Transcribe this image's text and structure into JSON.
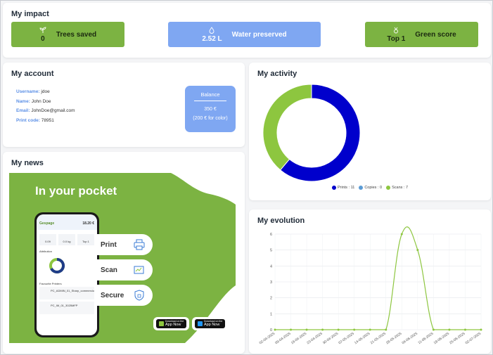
{
  "impact": {
    "title": "My impact",
    "trees": {
      "label": "Trees saved",
      "value": "0"
    },
    "water": {
      "label": "Water preserved",
      "value": "2.52 L"
    },
    "green": {
      "label": "Green score",
      "value": "Top 1"
    }
  },
  "account": {
    "title": "My account",
    "rows": [
      {
        "key": "Username:",
        "value": "jdoe"
      },
      {
        "key": "Name:",
        "value": "John Doe"
      },
      {
        "key": "Email:",
        "value": "JohnDoe@gmail.com"
      },
      {
        "key": "Print code:",
        "value": "78951"
      }
    ],
    "balance": {
      "title": "Balance",
      "amount": "350 €",
      "color_note": "(200 € for color)"
    }
  },
  "news": {
    "title": "My news",
    "banner": {
      "headline": "In your pocket",
      "features": [
        "Print",
        "Scan",
        "Secure"
      ],
      "phone_brand": "Gespage",
      "phone_balance": "18.20 €",
      "phone_stats": [
        "0.09",
        "0.0 kg",
        "Top 1"
      ],
      "phone_section": "Attribution",
      "phone_printers": "Favourite Printers",
      "phone_printer_names": [
        "PC_ADMIN_01_Sharp_commercio",
        "PC_IM_01_3025MFP"
      ],
      "store_badges": [
        {
          "small": "Download on the",
          "label": "App Now"
        },
        {
          "small": "Download on the",
          "label": "App Now"
        }
      ]
    }
  },
  "activity": {
    "title": "My activity",
    "legend": [
      {
        "name": "Prints",
        "value": "11",
        "color": "#0000cc"
      },
      {
        "name": "Copies",
        "value": "0",
        "color": "#5b9bd5"
      },
      {
        "name": "Scans",
        "value": "7",
        "color": "#8dc63f"
      }
    ]
  },
  "evolution": {
    "title": "My evolution"
  },
  "chart_data": [
    {
      "type": "pie",
      "title": "",
      "labels": [
        "Prints",
        "Copies",
        "Scans"
      ],
      "values": [
        11,
        0,
        7
      ],
      "colors": [
        "#0000cc",
        "#5b9bd5",
        "#8dc63f"
      ],
      "donut": true,
      "legend": "bottom"
    },
    {
      "type": "line",
      "title": "",
      "x": [
        "02-04-2025",
        "09-04-2025",
        "16-04-2025",
        "23-04-2025",
        "30-04-2025",
        "07-05-2025",
        "14-05-2025",
        "21-05-2025",
        "28-05-2025",
        "04-06-2025",
        "11-06-2025",
        "18-06-2025",
        "25-06-2025",
        "02-07-2025"
      ],
      "series": [
        {
          "values": [
            0,
            0,
            0,
            0,
            0,
            0,
            0,
            0,
            6,
            5,
            0,
            0,
            0,
            0
          ],
          "color": "#8dc63f"
        }
      ],
      "ylim": [
        0,
        6
      ],
      "yticks": [
        0,
        1,
        2,
        3,
        4,
        5,
        6
      ],
      "grid": true
    }
  ]
}
